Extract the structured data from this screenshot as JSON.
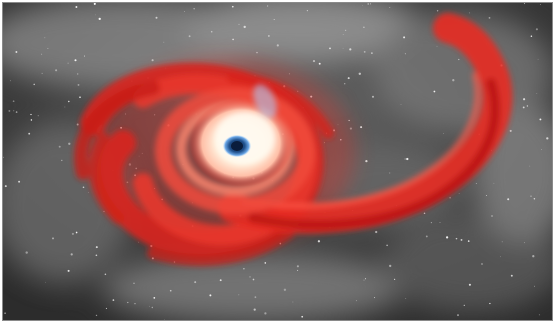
{
  "image": {
    "subject": "black-hole-tidal-disruption-illustration",
    "colors": {
      "background": "#3d3d3d",
      "nebula": "#9a9a9a",
      "disk": "#e52a22",
      "disk_dark": "#b81611",
      "core_glow": "#fff6e6",
      "event_horizon": "#1f4f8a",
      "horizon_ring": "#6aa6e6"
    }
  }
}
